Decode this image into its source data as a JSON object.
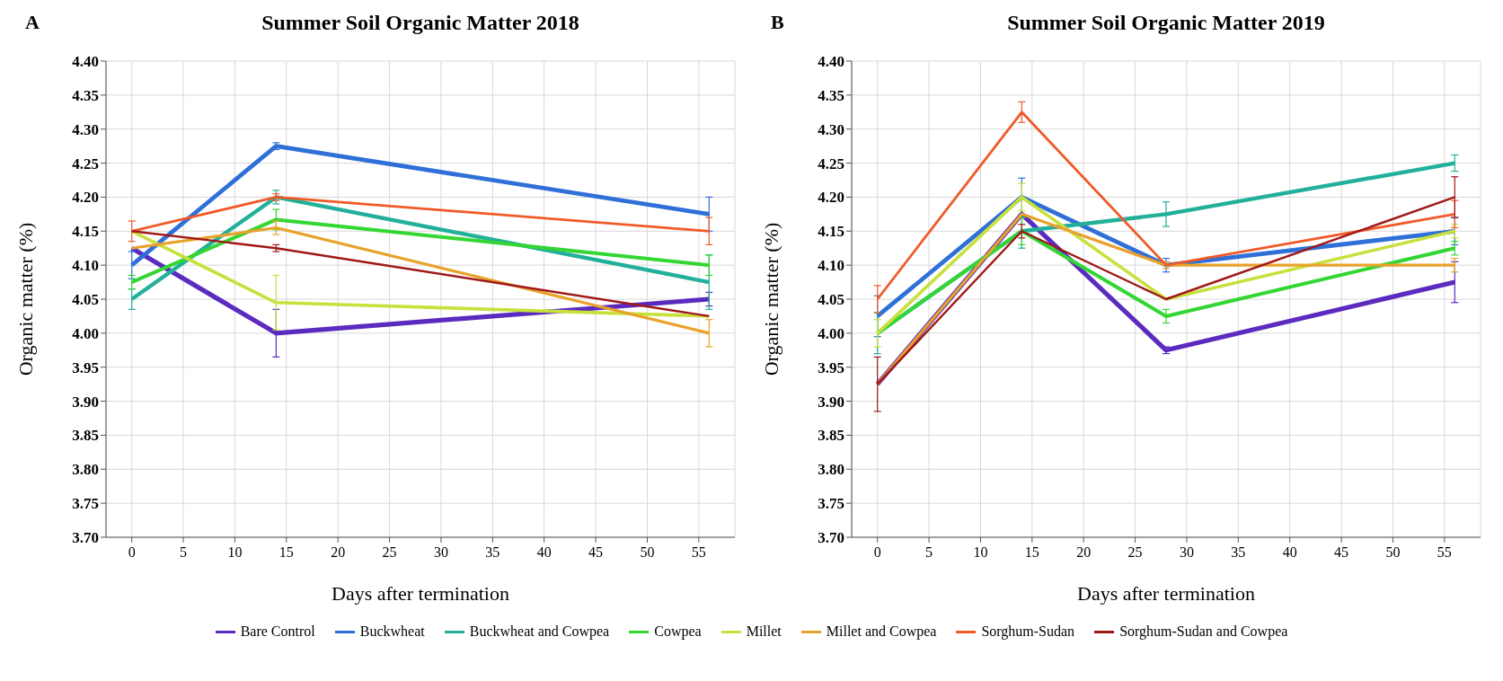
{
  "chart_data": [
    {
      "type": "line",
      "title": "Summer Soil Organic Matter 2018",
      "annotations": [
        "A"
      ],
      "xlabel": "Days after termination",
      "ylabel": "Organic matter (%)",
      "x": [
        0,
        14,
        56
      ],
      "xlim": [
        -2.5,
        58.5
      ],
      "xticks": [
        0,
        5,
        10,
        15,
        20,
        25,
        30,
        35,
        40,
        45,
        50,
        55
      ],
      "ylim": [
        3.7,
        4.4
      ],
      "yticks": [
        {
          "value": 3.7,
          "label": "3.70"
        },
        {
          "value": 3.75,
          "label": "3.75"
        },
        {
          "value": 3.8,
          "label": "3.80"
        },
        {
          "value": 3.85,
          "label": "3.85"
        },
        {
          "value": 3.9,
          "label": "3.90"
        },
        {
          "value": 3.95,
          "label": "3.95"
        },
        {
          "value": 4.0,
          "label": "4.00"
        },
        {
          "value": 4.05,
          "label": "4.05"
        },
        {
          "value": 4.1,
          "label": "4.10"
        },
        {
          "value": 4.15,
          "label": "4.15"
        },
        {
          "value": 4.2,
          "label": "4.20"
        },
        {
          "value": 4.25,
          "label": "4.25"
        },
        {
          "value": 4.3,
          "label": "4.30"
        },
        {
          "value": 4.35,
          "label": "4.35"
        },
        {
          "value": 4.4,
          "label": "4.40"
        }
      ],
      "grid": true,
      "marker": "none",
      "legend": "bottom",
      "series": [
        {
          "name": "Bare Control",
          "color": "#5b2bbf",
          "values": [
            4.125,
            4.0,
            4.05
          ],
          "errors": [
            null,
            0.035,
            0.01
          ]
        },
        {
          "name": "Buckwheat",
          "color": "#2f6fd8",
          "values": [
            4.1,
            4.275,
            4.175
          ],
          "errors": [
            0.02,
            0.005,
            0.025
          ]
        },
        {
          "name": "Buckwheat and Cowpea",
          "color": "#23b09a",
          "values": [
            4.05,
            4.2,
            4.075
          ],
          "errors": [
            0.015,
            0.01,
            0.04
          ]
        },
        {
          "name": "Cowpea",
          "color": "#33d633",
          "values": [
            4.075,
            4.167,
            4.1
          ],
          "errors": [
            0.01,
            0.015,
            0.015
          ]
        },
        {
          "name": "Millet",
          "color": "#c8e03c",
          "values": [
            4.15,
            4.045,
            4.025
          ],
          "errors": [
            null,
            0.04,
            null
          ]
        },
        {
          "name": "Millet and Cowpea",
          "color": "#e8a22a",
          "values": [
            4.125,
            4.155,
            4.0
          ],
          "errors": [
            null,
            0.01,
            0.02
          ]
        },
        {
          "name": "Sorghum-Sudan",
          "color": "#f05a28",
          "values": [
            4.15,
            4.2,
            4.15
          ],
          "errors": [
            0.015,
            0.005,
            0.02
          ]
        },
        {
          "name": "Sorghum-Sudan and Cowpea",
          "color": "#a01818",
          "values": [
            4.15,
            4.125,
            4.025
          ],
          "errors": [
            null,
            0.005,
            null
          ]
        }
      ]
    },
    {
      "type": "line",
      "title": "Summer Soil Organic Matter 2019",
      "annotations": [
        "B"
      ],
      "xlabel": "Days after termination",
      "ylabel": "Organic matter (%)",
      "x": [
        0,
        14,
        28,
        56
      ],
      "xlim": [
        -2.5,
        58.5
      ],
      "xticks": [
        0,
        5,
        10,
        15,
        20,
        25,
        30,
        35,
        40,
        45,
        50,
        55
      ],
      "ylim": [
        3.7,
        4.4
      ],
      "yticks": [
        {
          "value": 3.7,
          "label": "3.70"
        },
        {
          "value": 3.75,
          "label": "3.75"
        },
        {
          "value": 3.8,
          "label": "3.80"
        },
        {
          "value": 3.85,
          "label": "3.85"
        },
        {
          "value": 3.9,
          "label": "3.90"
        },
        {
          "value": 3.95,
          "label": "3.95"
        },
        {
          "value": 4.0,
          "label": "4.00"
        },
        {
          "value": 4.05,
          "label": "4.05"
        },
        {
          "value": 4.1,
          "label": "4.10"
        },
        {
          "value": 4.15,
          "label": "4.15"
        },
        {
          "value": 4.2,
          "label": "4.20"
        },
        {
          "value": 4.25,
          "label": "4.25"
        },
        {
          "value": 4.3,
          "label": "4.30"
        },
        {
          "value": 4.35,
          "label": "4.35"
        },
        {
          "value": 4.4,
          "label": "4.40"
        }
      ],
      "grid": true,
      "marker": "none",
      "series": [
        {
          "color": "#5b2bbf",
          "values": [
            3.925,
            4.175,
            3.975,
            4.075
          ],
          "errors": [
            null,
            null,
            0.005,
            0.03
          ]
        },
        {
          "color": "#2f6fd8",
          "values": [
            4.025,
            4.2,
            4.1,
            4.15
          ],
          "errors": [
            0.03,
            0.028,
            0.01,
            0.02
          ]
        },
        {
          "color": "#23b09a",
          "values": [
            4.0,
            4.15,
            4.175,
            4.25
          ],
          "errors": [
            0.03,
            0.025,
            0.018,
            0.012
          ]
        },
        {
          "color": "#33d633",
          "values": [
            4.0,
            4.15,
            4.025,
            4.125
          ],
          "errors": [
            null,
            0.02,
            0.01,
            0.01
          ]
        },
        {
          "color": "#c8e03c",
          "values": [
            4.0,
            4.2,
            4.05,
            4.15
          ],
          "errors": [
            0.02,
            0.02,
            null,
            0.01
          ]
        },
        {
          "color": "#e8a22a",
          "values": [
            3.925,
            4.175,
            4.1,
            4.1
          ],
          "errors": [
            null,
            null,
            0.005,
            0.01
          ]
        },
        {
          "color": "#f05a28",
          "values": [
            4.05,
            4.325,
            4.1,
            4.175
          ],
          "errors": [
            0.02,
            0.015,
            null,
            0.02
          ]
        },
        {
          "color": "#a01818",
          "values": [
            3.925,
            4.15,
            4.05,
            4.2
          ],
          "errors": [
            0.04,
            0.01,
            null,
            0.03
          ]
        }
      ]
    }
  ]
}
